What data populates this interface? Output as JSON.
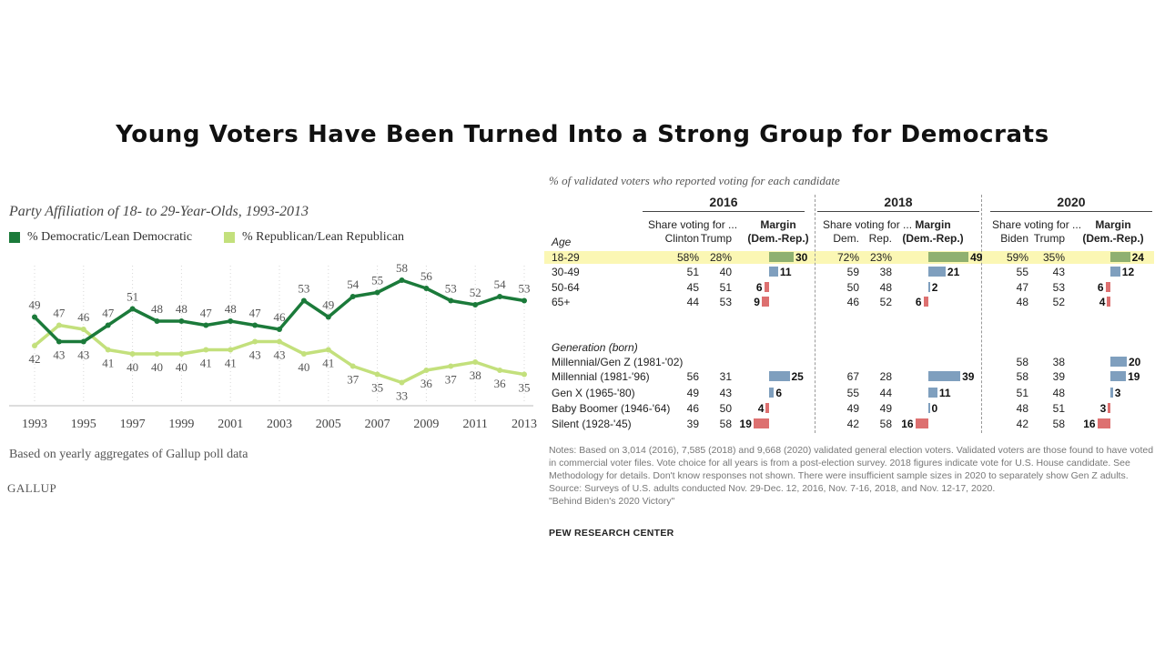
{
  "title": "Young Voters Have Been Turned Into a Strong Group for Democrats",
  "chart_data": [
    {
      "type": "line",
      "title": "Party Affiliation of 18- to 29-Year-Olds, 1993-2013",
      "note": "Based on yearly aggregates of Gallup poll data",
      "source": "GALLUP",
      "x_tick_labels": [
        "1993",
        "1995",
        "1997",
        "1999",
        "2001",
        "2003",
        "2005",
        "2007",
        "2009",
        "2011",
        "2013"
      ],
      "x": [
        1993,
        1994,
        1995,
        1996,
        1997,
        1998,
        1999,
        2000,
        2001,
        2002,
        2003,
        2004,
        2005,
        2006,
        2007,
        2008,
        2009,
        2010,
        2011,
        2012,
        2013
      ],
      "ylim": [
        28,
        62
      ],
      "grid": false,
      "legend": "top",
      "colors": {
        "dem": "#1b7a3a",
        "rep": "#c3e07c"
      },
      "series": [
        {
          "name": "% Democratic/Lean Democratic",
          "values": [
            49,
            43,
            43,
            47,
            51,
            48,
            48,
            47,
            48,
            47,
            46,
            53,
            49,
            54,
            55,
            58,
            56,
            53,
            52,
            54,
            53
          ]
        },
        {
          "name": "% Republican/Lean Republican",
          "values": [
            42,
            47,
            46,
            41,
            40,
            40,
            40,
            41,
            41,
            43,
            43,
            40,
            41,
            37,
            35,
            33,
            36,
            37,
            38,
            36,
            35
          ]
        }
      ]
    },
    {
      "type": "table",
      "subtitle": "% of validated voters who reported voting for each candidate",
      "years": [
        "2016",
        "2018",
        "2020"
      ],
      "share_header": "Share voting for ...",
      "margin_header_1": "Margin",
      "margin_header_2": "(Dem.-Rep.)",
      "candidates": [
        [
          "Clinton",
          "Trump"
        ],
        [
          "Dem.",
          "Rep."
        ],
        [
          "Biden",
          "Trump"
        ]
      ],
      "age_label": "Age",
      "generation_label": "Generation (born)",
      "colors": {
        "dem": "#7f9fbe",
        "rep": "#dd7070",
        "highlight_dem": "#8fb070",
        "highlight_bg": "#fbf7b4"
      },
      "rows": [
        {
          "label": "18-29",
          "highlight": true,
          "cells": [
            [
              "58%",
              "28%",
              30
            ],
            [
              "72%",
              "23%",
              49
            ],
            [
              "59%",
              "35%",
              24
            ]
          ]
        },
        {
          "label": "30-49",
          "cells": [
            [
              "51",
              "40",
              11
            ],
            [
              "59",
              "38",
              21
            ],
            [
              "55",
              "43",
              12
            ]
          ]
        },
        {
          "label": "50-64",
          "cells": [
            [
              "45",
              "51",
              -6
            ],
            [
              "50",
              "48",
              2
            ],
            [
              "47",
              "53",
              -6
            ]
          ]
        },
        {
          "label": "65+",
          "cells": [
            [
              "44",
              "53",
              -9
            ],
            [
              "46",
              "52",
              -6
            ],
            [
              "48",
              "52",
              -4
            ]
          ]
        },
        {
          "label": "Millennial/Gen Z (1981-'02)",
          "cells": [
            null,
            null,
            [
              "58",
              "38",
              20
            ]
          ]
        },
        {
          "label": "Millennial (1981-'96)",
          "cells": [
            [
              "56",
              "31",
              25
            ],
            [
              "67",
              "28",
              39
            ],
            [
              "58",
              "39",
              19
            ]
          ]
        },
        {
          "label": "Gen X (1965-'80)",
          "cells": [
            [
              "49",
              "43",
              6
            ],
            [
              "55",
              "44",
              11
            ],
            [
              "51",
              "48",
              3
            ]
          ]
        },
        {
          "label": "Baby Boomer (1946-'64)",
          "cells": [
            [
              "46",
              "50",
              -4
            ],
            [
              "49",
              "49",
              0
            ],
            [
              "48",
              "51",
              -3
            ]
          ]
        },
        {
          "label": "Silent (1928-'45)",
          "cells": [
            [
              "39",
              "58",
              -19
            ],
            [
              "42",
              "58",
              -16
            ],
            [
              "42",
              "58",
              -16
            ]
          ]
        }
      ],
      "notes": "Notes: Based on 3,014 (2016), 7,585 (2018) and 9,668 (2020) validated general election voters. Validated voters are those found to have voted in commercial voter files. Vote choice for all years is from a post-election survey. 2018 figures indicate vote for U.S. House candidate. See Methodology for details. Don't know responses not shown. There were insufficient sample sizes in 2020 to separately show Gen Z adults.",
      "source": "Source: Surveys of U.S. adults conducted Nov. 29-Dec. 12, 2016, Nov. 7-16, 2018, and Nov. 12-17, 2020.",
      "report": "\"Behind Biden's 2020 Victory\"",
      "brand": "PEW RESEARCH CENTER"
    }
  ]
}
